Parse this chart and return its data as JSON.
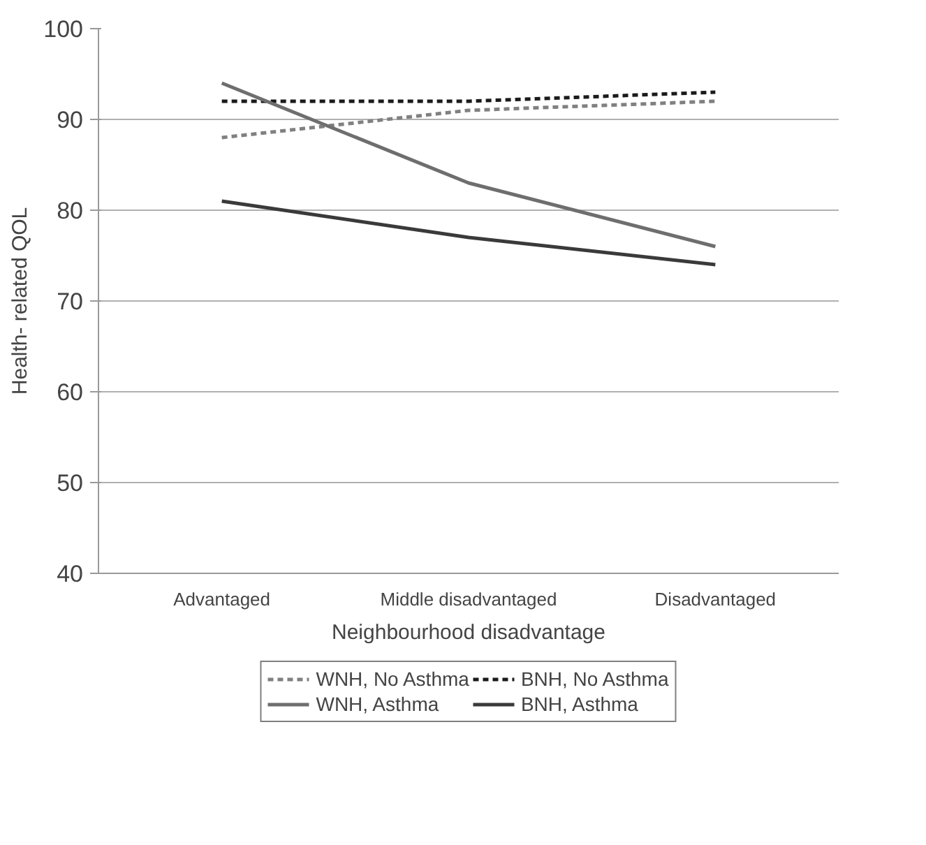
{
  "chart_data": {
    "type": "line",
    "xlabel": "Neighbourhood disadvantage",
    "ylabel": "Health- related QOL",
    "categories": [
      "Advantaged",
      "Middle disadvantaged",
      "Disadvantaged"
    ],
    "series": [
      {
        "name": "WNH, No Asthma",
        "color": "#808080",
        "line_style": "dashed",
        "values": [
          88,
          91,
          92
        ]
      },
      {
        "name": "BNH, No Asthma",
        "color": "#1a1a1a",
        "line_style": "dashed",
        "values": [
          92,
          92,
          93
        ]
      },
      {
        "name": "WNH, Asthma",
        "color": "#6e6e6e",
        "line_style": "solid",
        "values": [
          94,
          83,
          76
        ]
      },
      {
        "name": "BNH, Asthma",
        "color": "#3a3a3a",
        "line_style": "solid",
        "values": [
          81,
          77,
          74
        ]
      }
    ],
    "ylim": [
      40,
      100
    ],
    "yticks": [
      40,
      50,
      60,
      70,
      80,
      90,
      100
    ],
    "grid": "y",
    "legend": "bottom",
    "marker": "none"
  }
}
